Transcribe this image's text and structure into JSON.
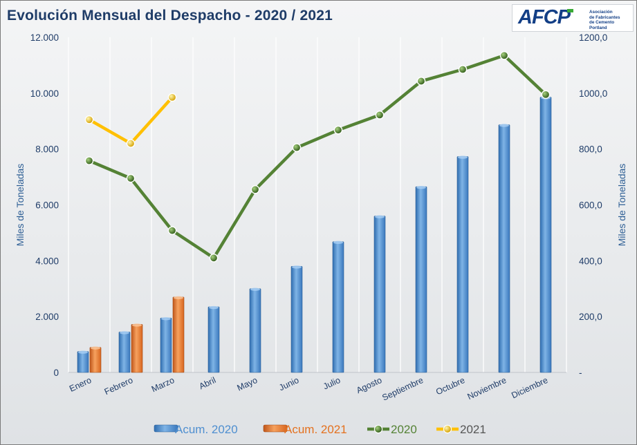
{
  "title": "Evolución Mensual del Despacho - 2020 / 2021",
  "logo": {
    "mark": "AFCP",
    "text_line1": "Asociación",
    "text_line2": "de Fabricantes",
    "text_line3": "de Cemento",
    "text_line4": "Portland"
  },
  "colors": {
    "title": "#1f3c68",
    "axis_text": "#1f3c68",
    "acum_2020": "#5b9bd5",
    "acum_2021": "#ed7d31",
    "line_2020": "#548235",
    "line_2021": "#ffc000",
    "grid": "#ffffff"
  },
  "chart_data": {
    "type": "bar",
    "title": "Evolución Mensual del Despacho - 2020 / 2021",
    "categories": [
      "Enero",
      "Febrero",
      "Marzo",
      "Abril",
      "Mayo",
      "Junio",
      "Julio",
      "Agosto",
      "Septiembre",
      "Octubre",
      "Noviembre",
      "Diciembre"
    ],
    "ylabel_left": "Miles de Toneladas",
    "ylabel_right": "Miles de Toneladas",
    "ylim_left": [
      0,
      12000
    ],
    "ylim_right": [
      0,
      1200
    ],
    "yticks_left": [
      "0",
      "2.000",
      "4.000",
      "6.000",
      "8.000",
      "10.000",
      "12.000"
    ],
    "yticks_right": [
      "-",
      "200,0",
      "400,0",
      "600,0",
      "800,0",
      "1000,0",
      "1200,0"
    ],
    "grid": true,
    "legend_position": "bottom",
    "series": [
      {
        "name": "Acum. 2020",
        "type": "bar",
        "axis": "left",
        "color": "#5b9bd5",
        "values": [
          750,
          1450,
          1950,
          2350,
          3000,
          3800,
          4680,
          5600,
          6650,
          7730,
          8870,
          9860
        ]
      },
      {
        "name": "Acum. 2021",
        "type": "bar",
        "axis": "left",
        "color": "#ed7d31",
        "values": [
          900,
          1720,
          2700,
          null,
          null,
          null,
          null,
          null,
          null,
          null,
          null,
          null
        ]
      },
      {
        "name": "2020",
        "type": "line",
        "axis": "right",
        "color": "#548235",
        "values": [
          758,
          695,
          508,
          410,
          655,
          805,
          868,
          922,
          1043,
          1085,
          1135,
          995
        ]
      },
      {
        "name": "2021",
        "type": "line",
        "axis": "right",
        "color": "#ffc000",
        "values": [
          905,
          820,
          985,
          null,
          null,
          null,
          null,
          null,
          null,
          null,
          null,
          null
        ]
      }
    ]
  }
}
